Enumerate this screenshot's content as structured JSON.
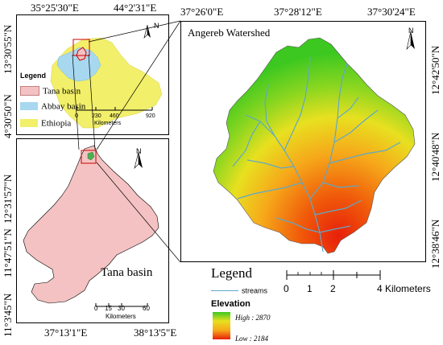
{
  "inset_map": {
    "top_coords": [
      "35°25'30\"E",
      "44°2'31\"E"
    ],
    "left_coords": [
      "13°30'55\"N",
      "4°30'50\"N"
    ],
    "legend_title": "Legend",
    "legend_items": [
      {
        "label": "Tana basin",
        "color": "#f4c2c2"
      },
      {
        "label": "Abbay basin",
        "color": "#a8d8f0"
      },
      {
        "label": "Ethiopia",
        "color": "#f2ef6a"
      }
    ],
    "scale_labels": [
      "0",
      "230",
      "460",
      "920"
    ],
    "scale_unit": "Kilometers",
    "north": "N"
  },
  "tana_map": {
    "left_coords": [
      "12°31'57\"N",
      "11°47'51\"N",
      "11°3'45\"N"
    ],
    "bottom_coords": [
      "37°13'1\"E",
      "38°13'5\"E"
    ],
    "basin_label": "Tana basin",
    "scale_labels": [
      "0",
      "15",
      "30",
      "60"
    ],
    "scale_unit": "Kilometers",
    "north": "N",
    "basin_color": "#f4c2c2"
  },
  "watershed_map": {
    "title": "Angereb Watershed",
    "top_coords": [
      "37°26'0\"E",
      "37°28'12\"E",
      "37°30'24\"E"
    ],
    "right_coords": [
      "12°42'50\"N",
      "12°40'48\"N",
      "12°38'46\"N"
    ],
    "north": "N"
  },
  "main_legend": {
    "title": "Legend",
    "streams_label": "streams",
    "stream_color": "#5fa8c8",
    "elevation_title": "Elevation",
    "high_label": "High : 2870",
    "low_label": "Low : 2184",
    "scale_labels": [
      "0",
      "1",
      "2",
      "4 Kilometers"
    ]
  }
}
